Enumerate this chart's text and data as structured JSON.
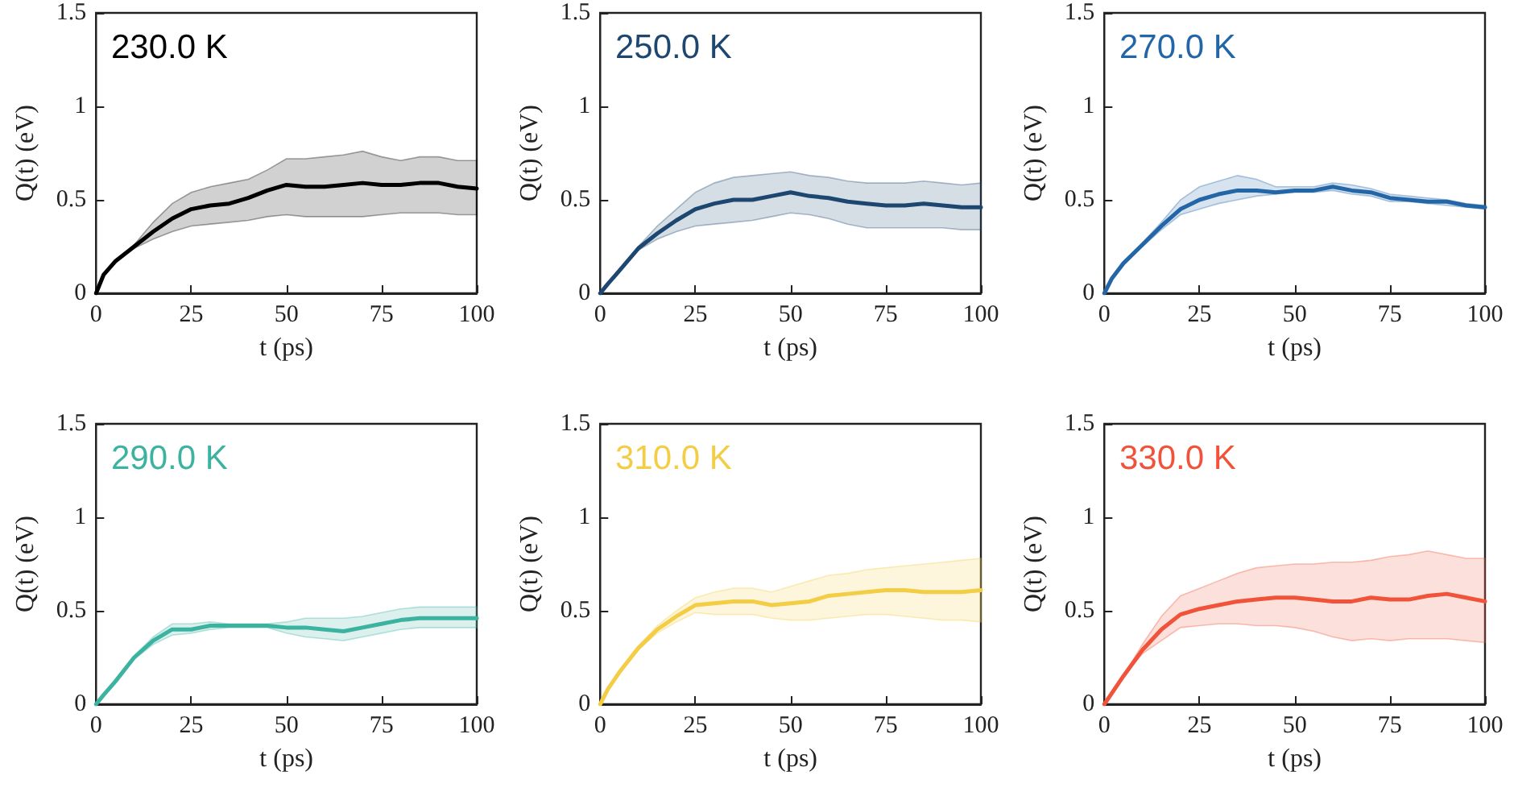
{
  "chart_data": [
    {
      "type": "line",
      "xlabel": "t (ps)",
      "ylabel": "Q(t) (eV)",
      "x": [
        0,
        2,
        5,
        10,
        15,
        20,
        25,
        30,
        35,
        40,
        45,
        50,
        55,
        60,
        65,
        70,
        75,
        80,
        85,
        90,
        95,
        100
      ],
      "xlim": [
        0,
        100
      ],
      "xticks": [
        0,
        25,
        50,
        75,
        100
      ],
      "ylim": [
        0,
        1.5
      ],
      "yticks": [
        0,
        0.5,
        1,
        1.5
      ],
      "marker": "none",
      "line_style": "solid",
      "series": [
        {
          "name": "230.0 K",
          "color": "#000000",
          "values": [
            0,
            0.1,
            0.17,
            0.25,
            0.33,
            0.4,
            0.45,
            0.47,
            0.48,
            0.51,
            0.55,
            0.58,
            0.57,
            0.57,
            0.58,
            0.59,
            0.58,
            0.58,
            0.59,
            0.59,
            0.57,
            0.56
          ],
          "lower": [
            0,
            0.1,
            0.17,
            0.24,
            0.29,
            0.33,
            0.36,
            0.37,
            0.38,
            0.39,
            0.41,
            0.42,
            0.41,
            0.41,
            0.41,
            0.41,
            0.42,
            0.43,
            0.43,
            0.43,
            0.42,
            0.42
          ],
          "upper": [
            0,
            0.1,
            0.17,
            0.26,
            0.38,
            0.48,
            0.54,
            0.57,
            0.59,
            0.61,
            0.66,
            0.72,
            0.72,
            0.73,
            0.74,
            0.76,
            0.73,
            0.71,
            0.73,
            0.73,
            0.71,
            0.71
          ]
        }
      ]
    },
    {
      "type": "line",
      "xlabel": "t (ps)",
      "ylabel": "Q(t) (eV)",
      "x": [
        0,
        2,
        5,
        10,
        15,
        20,
        25,
        30,
        35,
        40,
        45,
        50,
        55,
        60,
        65,
        70,
        75,
        80,
        85,
        90,
        95,
        100
      ],
      "xlim": [
        0,
        100
      ],
      "xticks": [
        0,
        25,
        50,
        75,
        100
      ],
      "ylim": [
        0,
        1.5
      ],
      "yticks": [
        0,
        0.5,
        1,
        1.5
      ],
      "marker": "none",
      "line_style": "solid",
      "series": [
        {
          "name": "250.0 K",
          "color": "#1d4670",
          "values": [
            0,
            0.05,
            0.12,
            0.24,
            0.32,
            0.39,
            0.45,
            0.48,
            0.5,
            0.5,
            0.52,
            0.54,
            0.52,
            0.51,
            0.49,
            0.48,
            0.47,
            0.47,
            0.48,
            0.47,
            0.46,
            0.46
          ],
          "lower": [
            0,
            0.05,
            0.12,
            0.23,
            0.29,
            0.33,
            0.36,
            0.37,
            0.38,
            0.39,
            0.41,
            0.43,
            0.42,
            0.4,
            0.37,
            0.35,
            0.35,
            0.35,
            0.35,
            0.35,
            0.34,
            0.34
          ],
          "upper": [
            0,
            0.05,
            0.12,
            0.25,
            0.36,
            0.45,
            0.54,
            0.59,
            0.62,
            0.63,
            0.64,
            0.65,
            0.63,
            0.62,
            0.6,
            0.59,
            0.59,
            0.59,
            0.6,
            0.59,
            0.58,
            0.59
          ]
        }
      ]
    },
    {
      "type": "line",
      "xlabel": "t (ps)",
      "ylabel": "Q(t) (eV)",
      "x": [
        0,
        2,
        5,
        10,
        15,
        20,
        25,
        30,
        35,
        40,
        45,
        50,
        55,
        60,
        65,
        70,
        75,
        80,
        85,
        90,
        95,
        100
      ],
      "xlim": [
        0,
        100
      ],
      "xticks": [
        0,
        25,
        50,
        75,
        100
      ],
      "ylim": [
        0,
        1.5
      ],
      "yticks": [
        0,
        0.5,
        1,
        1.5
      ],
      "marker": "none",
      "line_style": "solid",
      "series": [
        {
          "name": "270.0 K",
          "color": "#2266a8",
          "values": [
            0,
            0.08,
            0.16,
            0.26,
            0.36,
            0.45,
            0.5,
            0.53,
            0.55,
            0.55,
            0.54,
            0.55,
            0.55,
            0.57,
            0.55,
            0.54,
            0.51,
            0.5,
            0.49,
            0.49,
            0.47,
            0.46
          ],
          "lower": [
            0,
            0.08,
            0.16,
            0.25,
            0.34,
            0.42,
            0.45,
            0.48,
            0.5,
            0.52,
            0.53,
            0.54,
            0.54,
            0.55,
            0.53,
            0.52,
            0.49,
            0.49,
            0.48,
            0.47,
            0.46,
            0.45
          ],
          "upper": [
            0,
            0.08,
            0.16,
            0.27,
            0.38,
            0.5,
            0.57,
            0.6,
            0.63,
            0.61,
            0.57,
            0.57,
            0.57,
            0.59,
            0.58,
            0.56,
            0.53,
            0.52,
            0.51,
            0.5,
            0.48,
            0.47
          ]
        }
      ]
    },
    {
      "type": "line",
      "xlabel": "t (ps)",
      "ylabel": "Q(t) (eV)",
      "x": [
        0,
        2,
        5,
        10,
        15,
        20,
        25,
        30,
        35,
        40,
        45,
        50,
        55,
        60,
        65,
        70,
        75,
        80,
        85,
        90,
        95,
        100
      ],
      "xlim": [
        0,
        100
      ],
      "xticks": [
        0,
        25,
        50,
        75,
        100
      ],
      "ylim": [
        0,
        1.5
      ],
      "yticks": [
        0,
        0.5,
        1,
        1.5
      ],
      "marker": "none",
      "line_style": "solid",
      "series": [
        {
          "name": "290.0 K",
          "color": "#3bb3a0",
          "values": [
            0,
            0.05,
            0.12,
            0.25,
            0.34,
            0.4,
            0.4,
            0.42,
            0.42,
            0.42,
            0.42,
            0.41,
            0.41,
            0.4,
            0.39,
            0.41,
            0.43,
            0.45,
            0.46,
            0.46,
            0.46,
            0.46
          ],
          "lower": [
            0,
            0.05,
            0.12,
            0.24,
            0.32,
            0.37,
            0.38,
            0.4,
            0.41,
            0.41,
            0.41,
            0.38,
            0.36,
            0.35,
            0.34,
            0.36,
            0.38,
            0.4,
            0.41,
            0.41,
            0.41,
            0.41
          ],
          "upper": [
            0,
            0.05,
            0.12,
            0.26,
            0.36,
            0.43,
            0.43,
            0.44,
            0.43,
            0.43,
            0.43,
            0.44,
            0.46,
            0.46,
            0.46,
            0.47,
            0.49,
            0.51,
            0.52,
            0.52,
            0.52,
            0.52
          ]
        }
      ]
    },
    {
      "type": "line",
      "xlabel": "t (ps)",
      "ylabel": "Q(t) (eV)",
      "x": [
        0,
        2,
        5,
        10,
        15,
        20,
        25,
        30,
        35,
        40,
        45,
        50,
        55,
        60,
        65,
        70,
        75,
        80,
        85,
        90,
        95,
        100
      ],
      "xlim": [
        0,
        100
      ],
      "xticks": [
        0,
        25,
        50,
        75,
        100
      ],
      "ylim": [
        0,
        1.5
      ],
      "yticks": [
        0,
        0.5,
        1,
        1.5
      ],
      "marker": "none",
      "line_style": "solid",
      "series": [
        {
          "name": "310.0 K",
          "color": "#f2cd45",
          "values": [
            0,
            0.08,
            0.17,
            0.3,
            0.4,
            0.47,
            0.53,
            0.54,
            0.55,
            0.55,
            0.53,
            0.54,
            0.55,
            0.58,
            0.59,
            0.6,
            0.61,
            0.61,
            0.6,
            0.6,
            0.6,
            0.61
          ],
          "lower": [
            0,
            0.08,
            0.17,
            0.29,
            0.38,
            0.44,
            0.49,
            0.48,
            0.48,
            0.48,
            0.46,
            0.45,
            0.45,
            0.46,
            0.47,
            0.48,
            0.48,
            0.47,
            0.46,
            0.45,
            0.45,
            0.44
          ],
          "upper": [
            0,
            0.08,
            0.17,
            0.31,
            0.42,
            0.5,
            0.57,
            0.6,
            0.62,
            0.62,
            0.6,
            0.63,
            0.66,
            0.69,
            0.7,
            0.72,
            0.73,
            0.74,
            0.75,
            0.76,
            0.77,
            0.78
          ]
        }
      ]
    },
    {
      "type": "line",
      "xlabel": "t (ps)",
      "ylabel": "Q(t) (eV)",
      "x": [
        0,
        2,
        5,
        10,
        15,
        20,
        25,
        30,
        35,
        40,
        45,
        50,
        55,
        60,
        65,
        70,
        75,
        80,
        85,
        90,
        95,
        100
      ],
      "xlim": [
        0,
        100
      ],
      "xticks": [
        0,
        25,
        50,
        75,
        100
      ],
      "ylim": [
        0,
        1.5
      ],
      "yticks": [
        0,
        0.5,
        1,
        1.5
      ],
      "marker": "none",
      "line_style": "solid",
      "series": [
        {
          "name": "330.0 K",
          "color": "#f0533a",
          "values": [
            0,
            0.06,
            0.15,
            0.29,
            0.4,
            0.48,
            0.51,
            0.53,
            0.55,
            0.56,
            0.57,
            0.57,
            0.56,
            0.55,
            0.55,
            0.57,
            0.56,
            0.56,
            0.58,
            0.59,
            0.57,
            0.55
          ],
          "lower": [
            0,
            0.06,
            0.15,
            0.27,
            0.34,
            0.41,
            0.42,
            0.43,
            0.43,
            0.42,
            0.42,
            0.41,
            0.39,
            0.36,
            0.34,
            0.35,
            0.34,
            0.35,
            0.35,
            0.35,
            0.34,
            0.33
          ],
          "upper": [
            0,
            0.06,
            0.15,
            0.32,
            0.47,
            0.58,
            0.62,
            0.66,
            0.7,
            0.73,
            0.74,
            0.75,
            0.75,
            0.76,
            0.76,
            0.77,
            0.79,
            0.8,
            0.82,
            0.8,
            0.78,
            0.78
          ]
        }
      ]
    }
  ]
}
